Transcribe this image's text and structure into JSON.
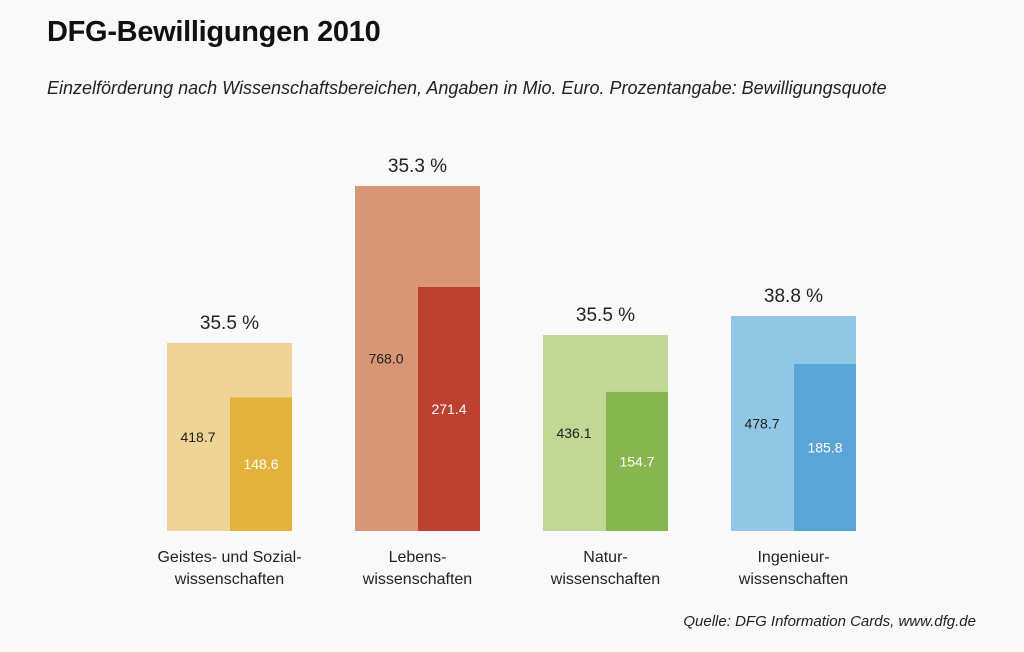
{
  "chart_data": {
    "type": "bar",
    "title": "DFG-Bewilligungen 2010",
    "subtitle": "Einzelförderung nach Wissenschaftsbereichen, Angaben in Mio. Euro. Prozentangabe: Bewilligungsquote",
    "source": "Quelle: DFG Information Cards, www.dfg.de",
    "categories": [
      [
        "Geistes- und Sozial-",
        "wissenschaften"
      ],
      [
        "Lebens-",
        "wissenschaften"
      ],
      [
        "Natur-",
        "wissenschaften"
      ],
      [
        "Ingenieur-",
        "wissenschaften"
      ]
    ],
    "series": [
      {
        "values": [
          418.7,
          768.0,
          436.1,
          478.7
        ],
        "labels": [
          "418.7",
          "768.0",
          "436.1",
          "478.7"
        ],
        "colors": [
          "#f0d497",
          "#d89677",
          "#c0d796",
          "#91c7e4"
        ]
      },
      {
        "values": [
          148.6,
          271.4,
          154.7,
          185.8
        ],
        "labels": [
          "148.6",
          "271.4",
          "154.7",
          "185.8"
        ],
        "colors": [
          "#e2b23d",
          "#bc4130",
          "#87b64e",
          "#5ba5d6"
        ]
      }
    ],
    "percent_labels": [
      "35.5 %",
      "35.3 %",
      "35.5 %",
      "38.8 %"
    ],
    "grid": false
  }
}
